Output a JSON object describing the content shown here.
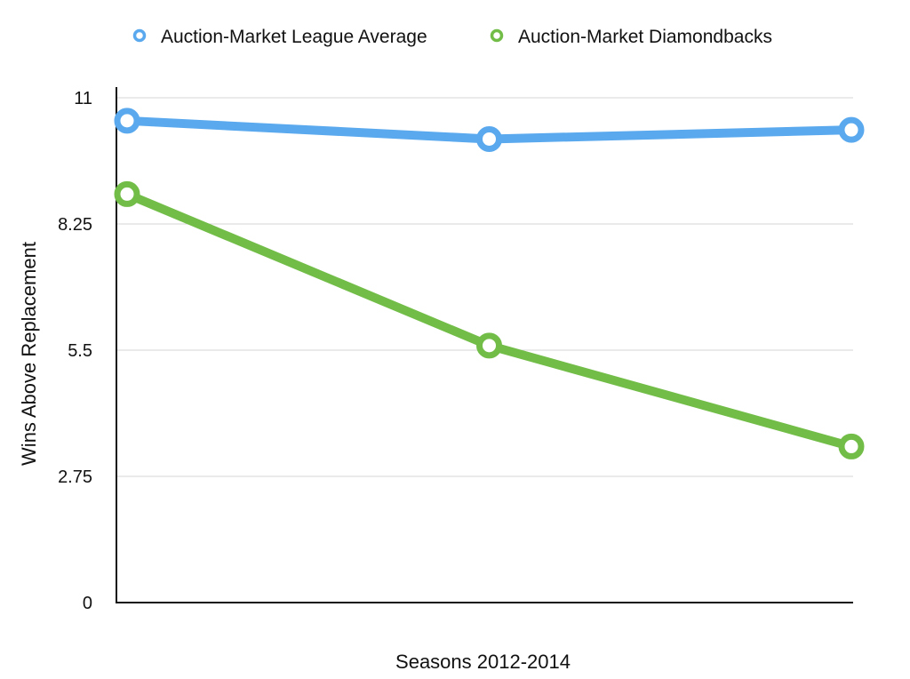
{
  "chart_data": {
    "type": "line",
    "categories": [
      "",
      "",
      ""
    ],
    "series": [
      {
        "name": "Auction-Market League Average",
        "values": [
          10.5,
          10.1,
          10.3
        ],
        "color": "#5aa9ee"
      },
      {
        "name": "Auction-Market Diamondbacks",
        "values": [
          8.9,
          5.6,
          3.4
        ],
        "color": "#72bd48"
      }
    ],
    "xlabel": "Seasons 2012-2014",
    "ylabel": "Wins Above Replacement",
    "ylim": [
      0,
      11
    ],
    "yticks": [
      0,
      2.75,
      5.5,
      8.25,
      11
    ],
    "ytick_labels": [
      "0",
      "2.75",
      "5.5",
      "8.25",
      "11"
    ],
    "grid": true,
    "legend_position": "top"
  }
}
